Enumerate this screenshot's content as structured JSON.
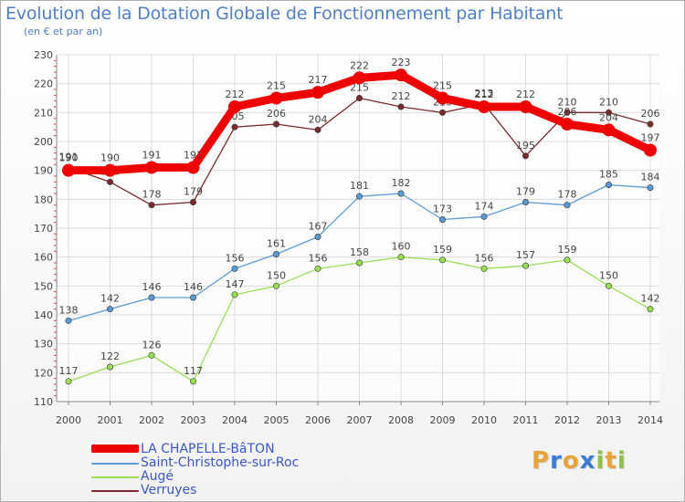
{
  "chart_data": {
    "type": "line",
    "title": "Evolution de la Dotation Globale de Fonctionnement par Habitant",
    "subtitle": "(en € et par an)",
    "xlabel": "",
    "ylabel": "",
    "ylim": [
      110,
      230
    ],
    "yticks": [
      110,
      120,
      130,
      140,
      150,
      160,
      170,
      180,
      190,
      200,
      210,
      220,
      230
    ],
    "categories": [
      "2000",
      "2001",
      "2002",
      "2003",
      "2004",
      "2005",
      "2006",
      "2007",
      "2008",
      "2009",
      "2010",
      "2011",
      "2012",
      "2013",
      "2014"
    ],
    "grid": true,
    "legend_position": "bottom-left",
    "series": [
      {
        "name": "Verruyes",
        "color": "#7a2b2b",
        "values": [
          191,
          186,
          178,
          179,
          205,
          206,
          204,
          215,
          212,
          210,
          213,
          195,
          210,
          210,
          206
        ]
      },
      {
        "name": "Augé",
        "color": "#99dd55",
        "values": [
          117,
          122,
          126,
          117,
          147,
          150,
          156,
          158,
          160,
          159,
          156,
          157,
          159,
          150,
          142
        ]
      },
      {
        "name": "Saint-Christophe-sur-Roc",
        "color": "#5b9bd5",
        "values": [
          138,
          142,
          146,
          146,
          156,
          161,
          167,
          181,
          182,
          173,
          174,
          179,
          178,
          185,
          184
        ]
      },
      {
        "name": "LA CHAPELLE-BâTON",
        "color": "#ee0000",
        "values": [
          190,
          190,
          191,
          191,
          212,
          215,
          217,
          222,
          223,
          215,
          212,
          212,
          206,
          204,
          197
        ]
      }
    ]
  },
  "legend": {
    "items": [
      {
        "label": "LA CHAPELLE-BâTON",
        "color": "#ee0000"
      },
      {
        "label": "Saint-Christophe-sur-Roc",
        "color": "#5b9bd5"
      },
      {
        "label": "Augé",
        "color": "#99dd55"
      },
      {
        "label": "Verruyes",
        "color": "#7a2b2b"
      }
    ]
  },
  "logo": {
    "letters": [
      "P",
      "r",
      "o",
      "x",
      "i",
      "t",
      "i"
    ],
    "colors": [
      "#e8a43a",
      "#3a7bd5",
      "#e8a43a",
      "#3a7bd5",
      "#8bc34a",
      "#e8a43a",
      "#8bc34a"
    ]
  }
}
